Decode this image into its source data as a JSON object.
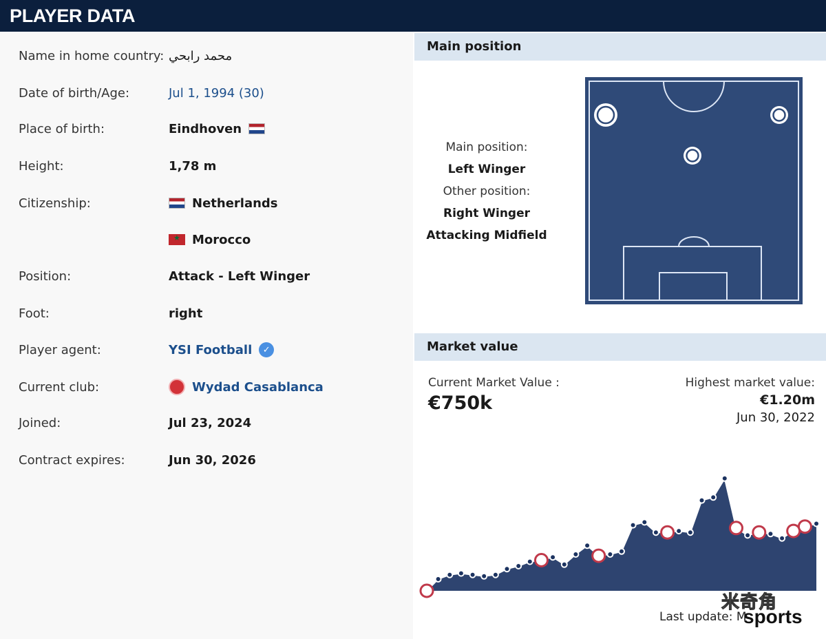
{
  "header": {
    "title": "PLAYER DATA"
  },
  "player": {
    "name_home_label": "Name in home country:",
    "name_home_value": "محمد رابحي",
    "dob_label": "Date of birth/Age:",
    "dob_value": "Jul 1, 1994 (30)",
    "birthplace_label": "Place of birth:",
    "birthplace_value": "Eindhoven",
    "height_label": "Height:",
    "height_value": "1,78 m",
    "citizenship_label": "Citizenship:",
    "citizenship": [
      "Netherlands",
      "Morocco"
    ],
    "position_label": "Position:",
    "position_value": "Attack - Left Winger",
    "foot_label": "Foot:",
    "foot_value": "right",
    "agent_label": "Player agent:",
    "agent_value": "YSI Football",
    "club_label": "Current club:",
    "club_value": "Wydad Casablanca",
    "joined_label": "Joined:",
    "joined_value": "Jul 23, 2024",
    "contract_label": "Contract expires:",
    "contract_value": "Jun 30, 2026"
  },
  "main_position": {
    "section_title": "Main position",
    "main_label": "Main position:",
    "main_value": "Left Winger",
    "other_label": "Other position:",
    "other_values": [
      "Right Winger",
      "Attacking Midfield"
    ]
  },
  "market_value": {
    "section_title": "Market value",
    "current_label": "Current Market Value :",
    "current_value": "€750k",
    "highest_label": "Highest market value:",
    "highest_value": "€1.20m",
    "highest_date": "Jun 30, 2022",
    "last_update": "Last update: M"
  },
  "watermark": {
    "logo": "米奇角",
    "brand": "sports"
  },
  "colors": {
    "header_bg": "#0b1f3d",
    "section_bg": "#dbe6f1",
    "pitch": "#2f4a78",
    "area": "#2e4470",
    "link": "#1c4f8c"
  },
  "chart_data": {
    "type": "area",
    "values": [
      0.0,
      0.08,
      0.11,
      0.12,
      0.11,
      0.1,
      0.11,
      0.15,
      0.17,
      0.2,
      0.21,
      0.23,
      0.18,
      0.25,
      0.31,
      0.24,
      0.25,
      0.27,
      0.45,
      0.47,
      0.4,
      0.4,
      0.41,
      0.4,
      0.62,
      0.64,
      0.77,
      0.43,
      0.38,
      0.4,
      0.39,
      0.36,
      0.41,
      0.44,
      0.46
    ],
    "ylim": [
      0,
      1
    ],
    "club_markers": [
      0,
      10,
      15,
      21,
      27,
      29,
      32,
      33
    ]
  }
}
